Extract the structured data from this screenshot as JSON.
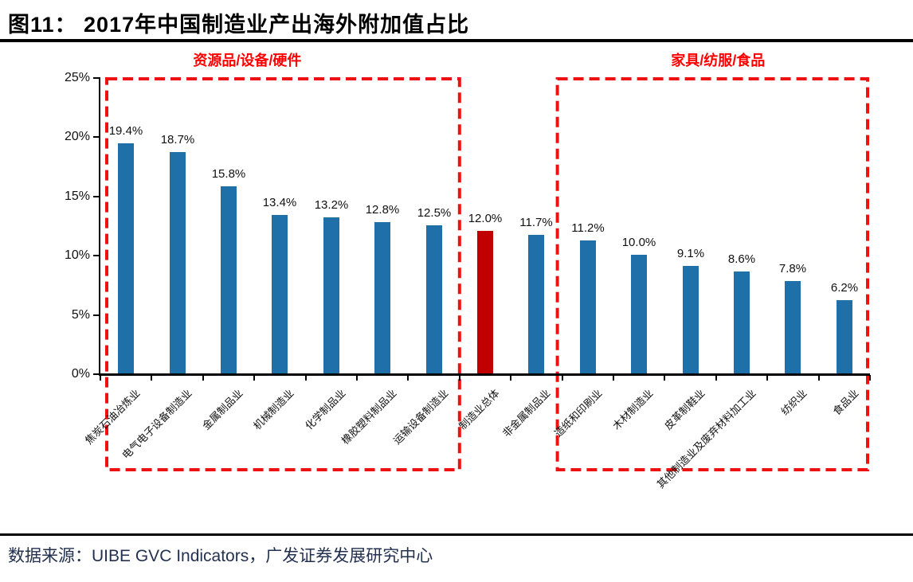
{
  "title": "图11： 2017年中国制造业产出海外附加值占比",
  "source": "数据来源：UIBE GVC Indicators，广发证券发展研究中心",
  "colors": {
    "bar_blue": "#1F70A8",
    "bar_red": "#C00000",
    "box_red": "#EE1111",
    "group_label_red": "#FF0000",
    "axis_black": "#000000",
    "text_dark": "#111111",
    "source_navy": "#233150"
  },
  "chart_data": {
    "type": "bar",
    "title": "2017年中国制造业产出海外附加值占比",
    "xlabel": "",
    "ylabel": "",
    "ylim": [
      0,
      25
    ],
    "ytick_step": 5,
    "ytick_labels": [
      "0%",
      "5%",
      "10%",
      "15%",
      "20%",
      "25%"
    ],
    "grid": false,
    "legend": false,
    "categories": [
      "焦炭石油冶炼业",
      "电气电子设备制造业",
      "金属制品业",
      "机械制造业",
      "化学制品业",
      "橡胶塑料制品业",
      "运输设备制造业",
      "制造业总体",
      "非金属制品业",
      "造纸和印刷业",
      "木材制造业",
      "皮革制鞋业",
      "其他制造业及废弃材料加工业",
      "纺织业",
      "食品业"
    ],
    "values": [
      19.4,
      18.7,
      15.8,
      13.4,
      13.2,
      12.8,
      12.5,
      12.0,
      11.7,
      11.2,
      10.0,
      9.1,
      8.6,
      7.8,
      6.2
    ],
    "value_labels": [
      "19.4%",
      "18.7%",
      "15.8%",
      "13.4%",
      "13.2%",
      "12.8%",
      "12.5%",
      "12.0%",
      "11.7%",
      "11.2%",
      "10.0%",
      "9.1%",
      "8.6%",
      "7.8%",
      "6.2%"
    ],
    "highlight_category": "制造业总体",
    "highlight_index": 7,
    "groups": [
      {
        "label": "资源品/设备/硬件",
        "from": 0,
        "to": 6
      },
      {
        "label": "家具/纺服/食品",
        "from": 9,
        "to": 14
      }
    ]
  }
}
